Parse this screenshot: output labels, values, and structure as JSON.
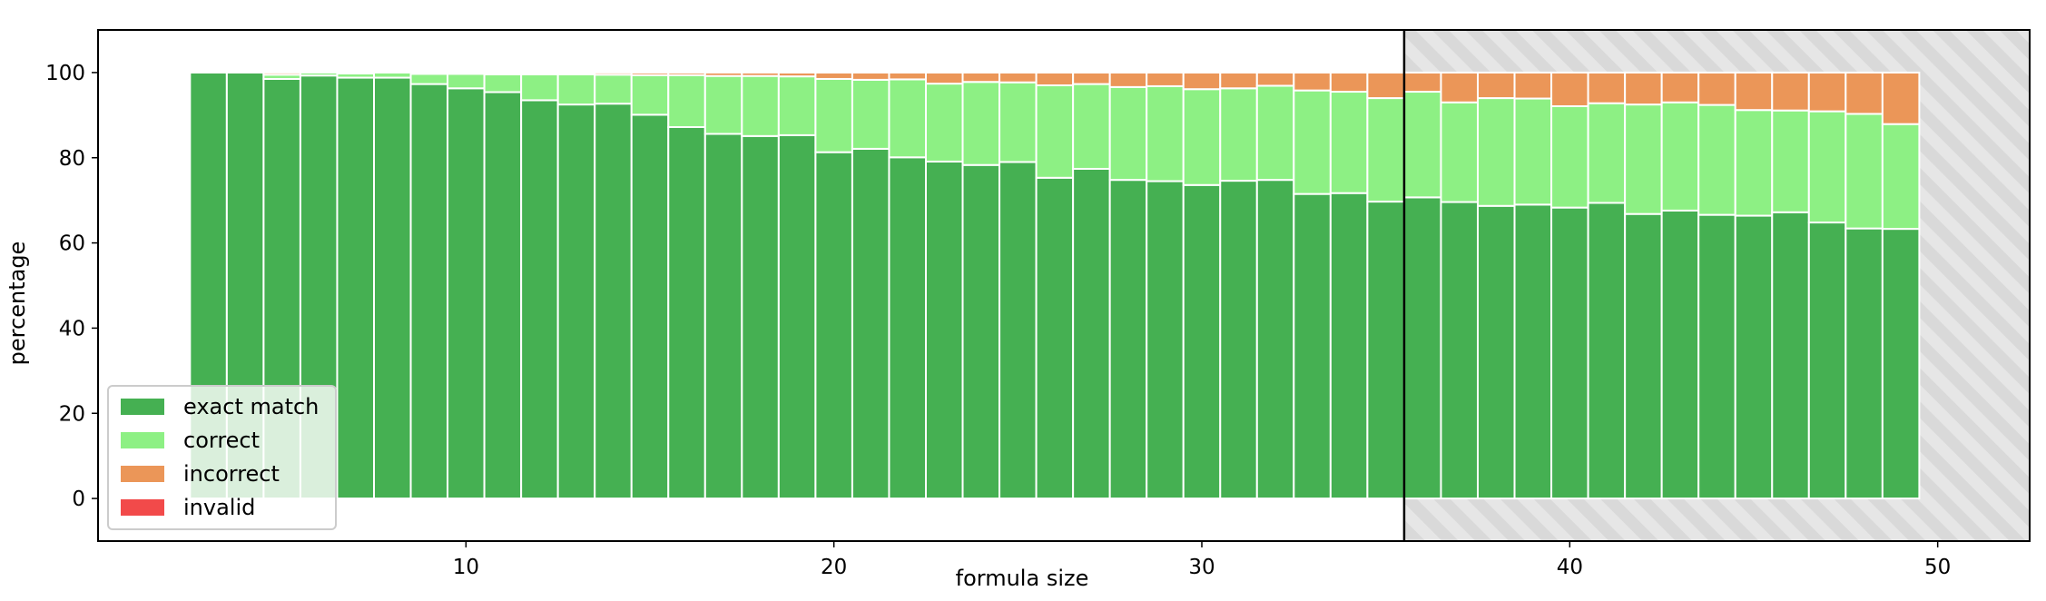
{
  "chart_data": {
    "type": "bar",
    "stacked": true,
    "title": "",
    "xlabel": "formula size",
    "ylabel": "percentage",
    "xlim": [
      0,
      52.5
    ],
    "ylim": [
      -10,
      110
    ],
    "xticks": [
      10,
      20,
      30,
      40,
      50
    ],
    "yticks": [
      0,
      20,
      40,
      60,
      80,
      100
    ],
    "grid": false,
    "legend_position": "lower-left",
    "shaded_region": {
      "x_start": 35.5,
      "x_end": 52.5,
      "style": "hatched-gray",
      "divider_line": true
    },
    "x": [
      3,
      4,
      5,
      6,
      7,
      8,
      9,
      10,
      11,
      12,
      13,
      14,
      15,
      16,
      17,
      18,
      19,
      20,
      21,
      22,
      23,
      24,
      25,
      26,
      27,
      28,
      29,
      30,
      31,
      32,
      33,
      34,
      35,
      36,
      37,
      38,
      39,
      40,
      41,
      42,
      43,
      44,
      45,
      46,
      47,
      48,
      49
    ],
    "series": [
      {
        "name": "exact match",
        "color": "#45b052",
        "values": [
          100,
          100,
          98.5,
          99.3,
          98.8,
          98.8,
          97.3,
          96.3,
          95.4,
          93.5,
          92.5,
          92.7,
          90.1,
          87.2,
          85.6,
          85.1,
          85.3,
          81.3,
          82.1,
          80.1,
          79.1,
          78.3,
          79.0,
          75.3,
          77.4,
          74.8,
          74.5,
          73.6,
          74.6,
          74.8,
          71.5,
          71.7,
          69.7,
          70.7,
          69.6,
          68.7,
          69.0,
          68.3,
          69.4,
          66.8,
          67.6,
          66.6,
          66.4,
          67.2,
          64.8,
          63.4,
          63.3
        ]
      },
      {
        "name": "correct",
        "color": "#8df084",
        "values": [
          0,
          0,
          1.0,
          0.7,
          1.0,
          1.2,
          2.4,
          3.4,
          4.2,
          6.1,
          7.1,
          6.8,
          9.3,
          12.2,
          13.6,
          14.1,
          13.8,
          17.2,
          16.2,
          18.3,
          18.3,
          19.5,
          18.7,
          21.7,
          19.9,
          21.8,
          22.3,
          22.5,
          21.7,
          22.1,
          24.3,
          23.8,
          24.3,
          24.8,
          23.4,
          25.3,
          24.9,
          23.8,
          23.4,
          25.7,
          25.4,
          25.8,
          24.8,
          23.9,
          26.1,
          26.9,
          24.6
        ]
      },
      {
        "name": "incorrect",
        "color": "#eb9658",
        "values": [
          0,
          0,
          0.5,
          0,
          0.2,
          0,
          0.3,
          0.3,
          0.4,
          0.4,
          0.4,
          0.5,
          0.6,
          0.6,
          0.8,
          0.8,
          0.9,
          1.5,
          1.7,
          1.6,
          2.6,
          2.2,
          2.3,
          3.0,
          2.7,
          3.4,
          3.2,
          3.9,
          3.7,
          3.1,
          4.2,
          4.5,
          6.0,
          4.5,
          7.0,
          6.0,
          6.1,
          7.9,
          7.2,
          7.5,
          7.0,
          7.6,
          8.8,
          8.9,
          9.1,
          9.7,
          12.1
        ]
      },
      {
        "name": "invalid",
        "color": "#f24a4a",
        "values": [
          0,
          0,
          0,
          0,
          0,
          0,
          0,
          0,
          0,
          0,
          0,
          0,
          0,
          0,
          0,
          0,
          0,
          0,
          0,
          0,
          0,
          0,
          0,
          0,
          0,
          0,
          0,
          0,
          0,
          0,
          0,
          0,
          0,
          0,
          0,
          0,
          0,
          0,
          0,
          0,
          0,
          0,
          0,
          0,
          0,
          0,
          0
        ]
      }
    ]
  }
}
